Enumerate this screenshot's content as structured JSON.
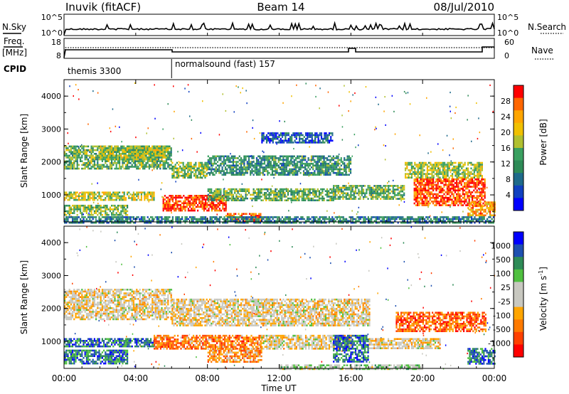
{
  "header": {
    "station": "Inuvik (fitACF)",
    "beam": "Beam 14",
    "date": "08/Jul/2010"
  },
  "panels": {
    "nsky": {
      "left_label": "N.Sky",
      "right_label": "N.Search",
      "left_ticks": [
        "10^5",
        "10^0"
      ],
      "right_ticks": [
        "10^5",
        "10^0"
      ]
    },
    "freq": {
      "left_label_1": "Freq.",
      "left_label_2": "[MHz]",
      "right_label": "Nave",
      "left_ticks": [
        "18",
        "8"
      ],
      "right_ticks": [
        "60",
        "0"
      ]
    },
    "cpid": {
      "label": "CPID",
      "segments": [
        {
          "text": "themis 3300",
          "start_hour": 0,
          "end_hour": 6
        },
        {
          "text": "normalsound (fast) 157",
          "start_hour": 6,
          "end_hour": 24
        }
      ]
    }
  },
  "chart_data": [
    {
      "type": "heatmap",
      "ylabel": "Slant Range [km]",
      "yticks": [
        "4000",
        "3000",
        "2000",
        "1000"
      ],
      "ylim": [
        180,
        4500
      ],
      "colorbar_label": "Power [dB]",
      "colorbar_ticks": [
        "28",
        "24",
        "20",
        "16",
        "12",
        "8",
        "4"
      ],
      "colorbar_colors": [
        "#ff0000",
        "#ff6600",
        "#ffa500",
        "#f0c000",
        "#b0c030",
        "#3aa060",
        "#2e8b57",
        "#1e6a8a",
        "#1040c0",
        "#0000ff"
      ],
      "regions": [
        {
          "start_hour": 0.0,
          "end_hour": 6.0,
          "range_low": 1800,
          "range_high": 2500,
          "level": 0.45
        },
        {
          "start_hour": 2.0,
          "end_hour": 5.8,
          "range_low": 2100,
          "range_high": 2500,
          "level": 0.55
        },
        {
          "start_hour": 0.0,
          "end_hour": 5.0,
          "range_low": 850,
          "range_high": 1100,
          "level": 0.6
        },
        {
          "start_hour": 0.0,
          "end_hour": 3.5,
          "range_low": 400,
          "range_high": 700,
          "level": 0.5
        },
        {
          "start_hour": 5.5,
          "end_hour": 9.0,
          "range_low": 500,
          "range_high": 1000,
          "level": 0.9
        },
        {
          "start_hour": 6.0,
          "end_hour": 8.0,
          "range_low": 1500,
          "range_high": 2000,
          "level": 0.5
        },
        {
          "start_hour": 9.0,
          "end_hour": 11.0,
          "range_low": 200,
          "range_high": 450,
          "level": 0.85
        },
        {
          "start_hour": 8.0,
          "end_hour": 15.0,
          "range_low": 850,
          "range_high": 1200,
          "level": 0.45
        },
        {
          "start_hour": 8.0,
          "end_hour": 16.0,
          "range_low": 1600,
          "range_high": 2200,
          "level": 0.35
        },
        {
          "start_hour": 11.0,
          "end_hour": 15.0,
          "range_low": 2600,
          "range_high": 2900,
          "level": 0.2
        },
        {
          "start_hour": 15.0,
          "end_hour": 19.0,
          "range_low": 900,
          "range_high": 1300,
          "level": 0.45
        },
        {
          "start_hour": 19.0,
          "end_hour": 23.3,
          "range_low": 1500,
          "range_high": 2000,
          "level": 0.55
        },
        {
          "start_hour": 19.5,
          "end_hour": 23.5,
          "range_low": 700,
          "range_high": 1500,
          "level": 0.9
        },
        {
          "start_hour": 22.5,
          "end_hour": 24.0,
          "range_low": 400,
          "range_high": 800,
          "level": 0.75
        },
        {
          "start_hour": 0.0,
          "end_hour": 24.0,
          "range_low": 180,
          "range_high": 350,
          "level": 0.3
        }
      ]
    },
    {
      "type": "heatmap",
      "ylabel": "Slant Range [km]",
      "yticks": [
        "4000",
        "3000",
        "2000",
        "1000"
      ],
      "ylim": [
        180,
        4500
      ],
      "xlabel": "Time UT",
      "xticks": [
        "00:00",
        "04:00",
        "08:00",
        "12:00",
        "16:00",
        "20:00",
        "00:00"
      ],
      "colorbar_label": "Velocity [m s^-1]",
      "colorbar_ticks": [
        "1000",
        "500",
        "100",
        "25",
        "-25",
        "-100",
        "-500",
        "-1000"
      ],
      "colorbar_colors": [
        "#0000ff",
        "#1e50b0",
        "#2e8b57",
        "#50c040",
        "#c8c8c0",
        "#c8c8c0",
        "#ffa500",
        "#ff7a00",
        "#ff4000",
        "#ff0000"
      ],
      "regions": [
        {
          "start_hour": 0.0,
          "end_hour": 6.0,
          "range_low": 1700,
          "range_high": 2600,
          "level": 0.45
        },
        {
          "start_hour": 6.0,
          "end_hour": 17.0,
          "range_low": 1500,
          "range_high": 2300,
          "level": 0.45
        },
        {
          "start_hour": 0.0,
          "end_hour": 5.0,
          "range_low": 850,
          "range_high": 1100,
          "level": 0.8
        },
        {
          "start_hour": 0.0,
          "end_hour": 3.5,
          "range_low": 350,
          "range_high": 750,
          "level": 0.8
        },
        {
          "start_hour": 5.0,
          "end_hour": 11.0,
          "range_low": 800,
          "range_high": 1200,
          "level": 0.25
        },
        {
          "start_hour": 8.0,
          "end_hour": 11.0,
          "range_low": 400,
          "range_high": 800,
          "level": 0.3
        },
        {
          "start_hour": 11.0,
          "end_hour": 16.0,
          "range_low": 800,
          "range_high": 1200,
          "level": 0.45
        },
        {
          "start_hour": 15.0,
          "end_hour": 17.0,
          "range_low": 400,
          "range_high": 1200,
          "level": 0.8
        },
        {
          "start_hour": 18.5,
          "end_hour": 23.5,
          "range_low": 1300,
          "range_high": 1900,
          "level": 0.2
        },
        {
          "start_hour": 17.0,
          "end_hour": 21.0,
          "range_low": 800,
          "range_high": 1100,
          "level": 0.45
        },
        {
          "start_hour": 22.5,
          "end_hour": 24.0,
          "range_low": 300,
          "range_high": 800,
          "level": 0.8
        },
        {
          "start_hour": 12.0,
          "end_hour": 20.0,
          "range_low": 180,
          "range_high": 300,
          "level": 0.55
        }
      ]
    }
  ]
}
